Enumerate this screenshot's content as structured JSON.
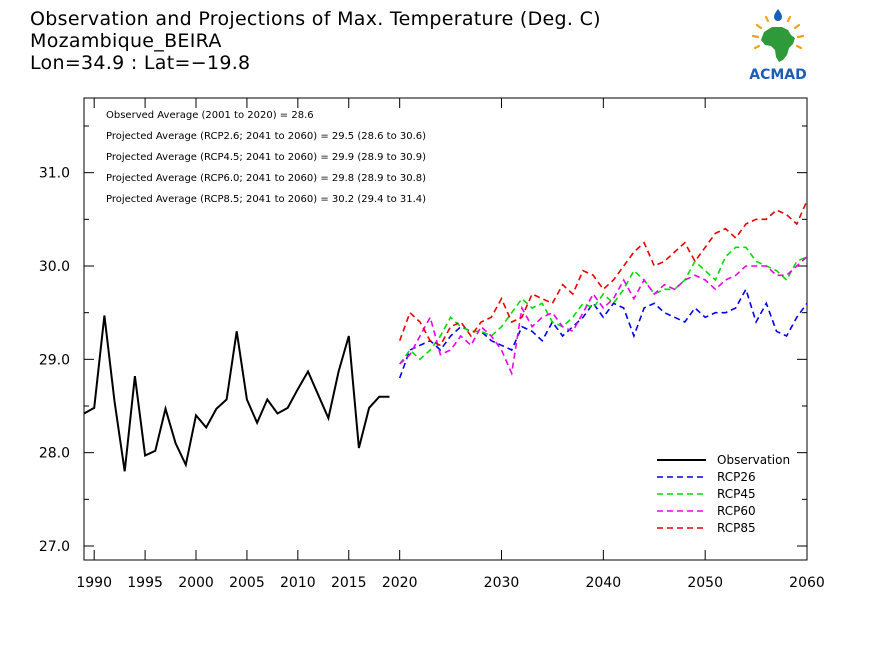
{
  "title": {
    "line1": "Observation and Projections of Max. Temperature (Deg. C)",
    "line2": "Mozambique_BEIRA",
    "line3": "Lon=34.9 : Lat=−19.8"
  },
  "logo": {
    "text": "ACMAD",
    "icon": "africa-map-logo-icon",
    "colors": {
      "africa": "#2e9a3a",
      "text": "#1a5fb4",
      "sun": "#f0a020"
    }
  },
  "annotations": [
    "Observed Average (2001 to 2020) = 28.6",
    "Projected Average (RCP2.6; 2041 to 2060) = 29.5 (28.6 to 30.6)",
    "Projected Average (RCP4.5; 2041 to 2060) = 29.9 (28.9 to 30.9)",
    "Projected Average (RCP6.0; 2041 to 2060) = 29.8 (28.9 to 30.8)",
    "Projected Average (RCP8.5; 2041 to 2060) = 30.2 (29.4 to 31.4)"
  ],
  "chart_data": {
    "type": "line",
    "xlim": [
      1989,
      2060
    ],
    "ylim": [
      26.85,
      31.8
    ],
    "x_ticks": [
      1990,
      1995,
      2000,
      2005,
      2010,
      2015,
      2020,
      2030,
      2040,
      2050,
      2060
    ],
    "y_ticks": [
      27.0,
      28.0,
      29.0,
      30.0,
      31.0
    ],
    "y_tick_labels": [
      "27.0",
      "28.0",
      "29.0",
      "30.0",
      "31.0"
    ],
    "grid": false,
    "legend_position": "bottom-right",
    "series": [
      {
        "name": "Observation",
        "color": "#000000",
        "dashed": false,
        "x": [
          1989,
          1990,
          1991,
          1992,
          1993,
          1994,
          1995,
          1996,
          1997,
          1998,
          1999,
          2000,
          2001,
          2002,
          2003,
          2004,
          2005,
          2006,
          2007,
          2008,
          2009,
          2010,
          2011,
          2012,
          2013,
          2014,
          2015,
          2016,
          2017,
          2018,
          2019
        ],
        "y": [
          28.42,
          28.48,
          29.47,
          28.55,
          27.8,
          28.82,
          27.97,
          28.02,
          28.47,
          28.1,
          27.87,
          28.4,
          28.27,
          28.47,
          28.57,
          29.3,
          28.57,
          28.32,
          28.57,
          28.42,
          28.48,
          28.68,
          28.87,
          28.62,
          28.37,
          28.87,
          29.25,
          28.05,
          28.48,
          28.6,
          28.6
        ]
      },
      {
        "name": "RCP26",
        "color": "#0000ee",
        "dashed": true,
        "x": [
          2020,
          2021,
          2022,
          2023,
          2024,
          2025,
          2026,
          2027,
          2028,
          2029,
          2030,
          2031,
          2032,
          2033,
          2034,
          2035,
          2036,
          2037,
          2038,
          2039,
          2040,
          2041,
          2042,
          2043,
          2044,
          2045,
          2046,
          2047,
          2048,
          2049,
          2050,
          2051,
          2052,
          2053,
          2054,
          2055,
          2056,
          2057,
          2058,
          2059,
          2060
        ],
        "y": [
          28.8,
          29.1,
          29.15,
          29.2,
          29.1,
          29.25,
          29.35,
          29.3,
          29.3,
          29.2,
          29.15,
          29.1,
          29.35,
          29.3,
          29.2,
          29.4,
          29.25,
          29.35,
          29.45,
          29.6,
          29.45,
          29.6,
          29.55,
          29.25,
          29.55,
          29.6,
          29.5,
          29.45,
          29.4,
          29.55,
          29.45,
          29.5,
          29.5,
          29.55,
          29.75,
          29.4,
          29.6,
          29.3,
          29.25,
          29.45,
          29.6
        ]
      },
      {
        "name": "RCP45",
        "color": "#00dd00",
        "dashed": true,
        "x": [
          2020,
          2021,
          2022,
          2023,
          2024,
          2025,
          2026,
          2027,
          2028,
          2029,
          2030,
          2031,
          2032,
          2033,
          2034,
          2035,
          2036,
          2037,
          2038,
          2039,
          2040,
          2041,
          2042,
          2043,
          2044,
          2045,
          2046,
          2047,
          2048,
          2049,
          2050,
          2051,
          2052,
          2053,
          2054,
          2055,
          2056,
          2057,
          2058,
          2059,
          2060
        ],
        "y": [
          28.95,
          29.1,
          29.0,
          29.1,
          29.25,
          29.45,
          29.35,
          29.3,
          29.3,
          29.25,
          29.35,
          29.5,
          29.65,
          29.55,
          29.6,
          29.4,
          29.35,
          29.45,
          29.6,
          29.55,
          29.7,
          29.6,
          29.75,
          29.95,
          29.85,
          29.7,
          29.75,
          29.75,
          29.85,
          30.05,
          29.95,
          29.85,
          30.1,
          30.2,
          30.2,
          30.05,
          30.0,
          29.95,
          29.85,
          30.05,
          30.1
        ]
      },
      {
        "name": "RCP60",
        "color": "#ee00ee",
        "dashed": true,
        "x": [
          2020,
          2021,
          2022,
          2023,
          2024,
          2025,
          2026,
          2027,
          2028,
          2029,
          2030,
          2031,
          2032,
          2033,
          2034,
          2035,
          2036,
          2037,
          2038,
          2039,
          2040,
          2041,
          2042,
          2043,
          2044,
          2045,
          2046,
          2047,
          2048,
          2049,
          2050,
          2051,
          2052,
          2053,
          2054,
          2055,
          2056,
          2057,
          2058,
          2059,
          2060
        ],
        "y": [
          28.95,
          29.05,
          29.25,
          29.45,
          29.05,
          29.1,
          29.25,
          29.15,
          29.35,
          29.25,
          29.1,
          28.85,
          29.55,
          29.35,
          29.45,
          29.5,
          29.35,
          29.3,
          29.5,
          29.7,
          29.55,
          29.65,
          29.85,
          29.65,
          29.85,
          29.7,
          29.8,
          29.75,
          29.85,
          29.9,
          29.85,
          29.75,
          29.85,
          29.9,
          30.0,
          30.0,
          30.0,
          29.9,
          29.9,
          30.0,
          30.1
        ]
      },
      {
        "name": "RCP85",
        "color": "#ee0000",
        "dashed": true,
        "x": [
          2020,
          2021,
          2022,
          2023,
          2024,
          2025,
          2026,
          2027,
          2028,
          2029,
          2030,
          2031,
          2032,
          2033,
          2034,
          2035,
          2036,
          2037,
          2038,
          2039,
          2040,
          2041,
          2042,
          2043,
          2044,
          2045,
          2046,
          2047,
          2048,
          2049,
          2050,
          2051,
          2052,
          2053,
          2054,
          2055,
          2056,
          2057,
          2058,
          2059,
          2060
        ],
        "y": [
          29.2,
          29.5,
          29.4,
          29.2,
          29.15,
          29.35,
          29.4,
          29.25,
          29.4,
          29.45,
          29.65,
          29.4,
          29.45,
          29.7,
          29.65,
          29.6,
          29.8,
          29.7,
          29.95,
          29.9,
          29.75,
          29.85,
          30.0,
          30.15,
          30.25,
          30.0,
          30.05,
          30.15,
          30.25,
          30.05,
          30.2,
          30.35,
          30.4,
          30.3,
          30.45,
          30.5,
          30.5,
          30.6,
          30.55,
          30.45,
          30.7
        ]
      }
    ]
  }
}
